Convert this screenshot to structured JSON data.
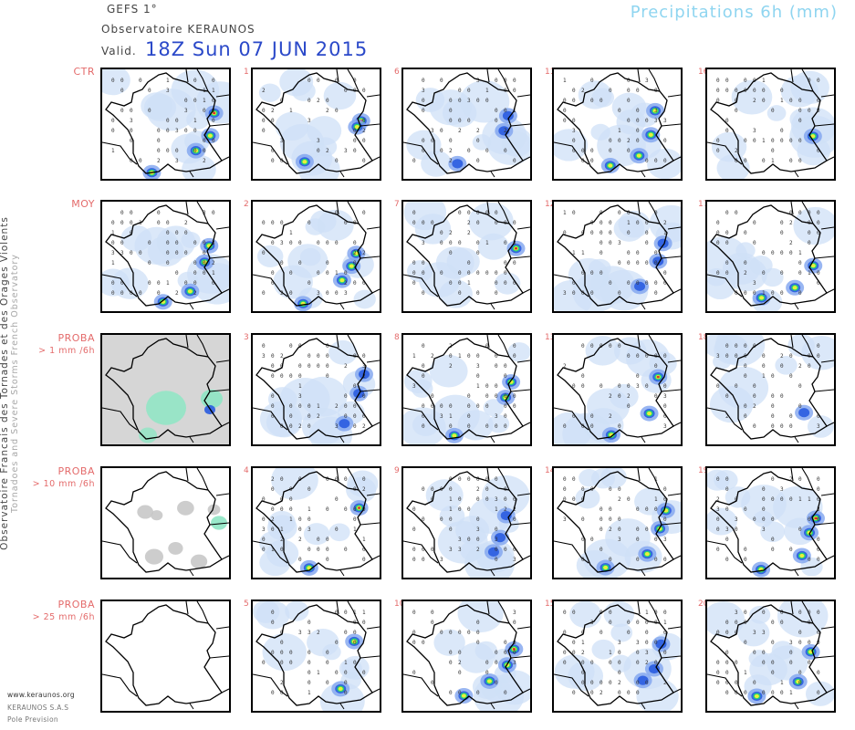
{
  "header": {
    "model": "GEFS 1°",
    "organization": "Observatoire KERAUNOS",
    "valid_label": "Valid.",
    "valid_date": "18Z Sun 07 JUN 2015",
    "product": "Precipitations 6h (mm)"
  },
  "side_title": {
    "line1": "Observatoire Francais des Tornades et des Orages Violents",
    "line2": "Tornadoes and Severe Storms French Observatory"
  },
  "rows": [
    {
      "label": "CTR",
      "sub": "",
      "members": [
        "1",
        "6",
        "11",
        "16"
      ]
    },
    {
      "label": "MOY",
      "sub": "",
      "members": [
        "2",
        "7",
        "12",
        "17"
      ]
    },
    {
      "label": "PROBA",
      "sub": "> 1 mm /6h",
      "members": [
        "3",
        "8",
        "13",
        "18"
      ]
    },
    {
      "label": "PROBA",
      "sub": "> 10 mm /6h",
      "members": [
        "4",
        "9",
        "14",
        "19"
      ]
    },
    {
      "label": "PROBA",
      "sub": "> 25 mm /6h",
      "members": [
        "5",
        "10",
        "15",
        "20"
      ]
    }
  ],
  "footer": {
    "website": "www.keraunos.org",
    "company": "KERAUNOS S.A.S",
    "team": "Pole Prevision"
  },
  "colors": {
    "light_blue": "#cfe0f7",
    "mid_blue": "#7fa4ef",
    "blue": "#2a5ce0",
    "green": "#22d07a",
    "yellow": "#e9ef3b",
    "red": "#d83232",
    "proba_gray": "#c8c8c8",
    "proba_green": "#8ee6c4",
    "row_label": "#e46b6b",
    "title_blue": "#2b49c9",
    "product_color": "#8fd5f0"
  }
}
